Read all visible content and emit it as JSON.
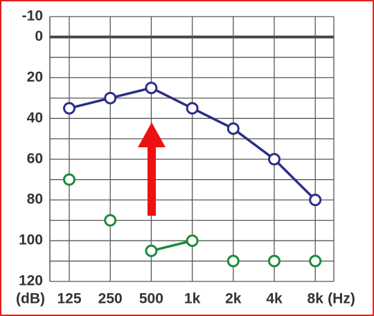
{
  "chart_data": {
    "type": "line",
    "categories": [
      "125",
      "250",
      "500",
      "1k",
      "2k",
      "4k",
      "8k"
    ],
    "x_unit": "(Hz)",
    "y_unit": "(dB)",
    "ylim": [
      -10,
      120
    ],
    "y_inverted": true,
    "yticks": [
      -10,
      0,
      20,
      40,
      60,
      80,
      100,
      120
    ],
    "minor_yticks": [
      10,
      30,
      50,
      70,
      90,
      110
    ],
    "bold_ytick": 0,
    "grid": true,
    "series": [
      {
        "color": "#2b2e85",
        "values": [
          35,
          30,
          25,
          35,
          45,
          60,
          80
        ],
        "connect": "all"
      },
      {
        "color": "#1b8a3c",
        "values": [
          70,
          90,
          105,
          100,
          110,
          110,
          110
        ],
        "connect": [
          [
            2,
            3
          ]
        ]
      }
    ]
  }
}
